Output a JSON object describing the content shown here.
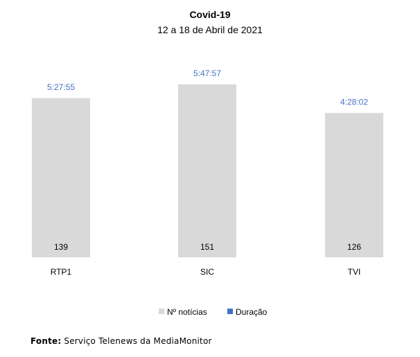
{
  "chart_data": {
    "type": "bar",
    "title": "Covid-19",
    "subtitle": "12 a 18 de Abril de 2021",
    "categories": [
      "RTP1",
      "SIC",
      "TVI"
    ],
    "series": [
      {
        "name": "Nº notícias",
        "values": [
          139,
          151,
          126
        ],
        "color": "#d9d9d9"
      },
      {
        "name": "Duração",
        "values": [
          "5:27:55",
          "5:47:57",
          "4:28:02"
        ],
        "color": "#4472c4"
      }
    ],
    "legend_position": "bottom",
    "grid": false
  },
  "source": {
    "label": "Fonte:",
    "text": " Serviço Telenews da MediaMonitor"
  }
}
